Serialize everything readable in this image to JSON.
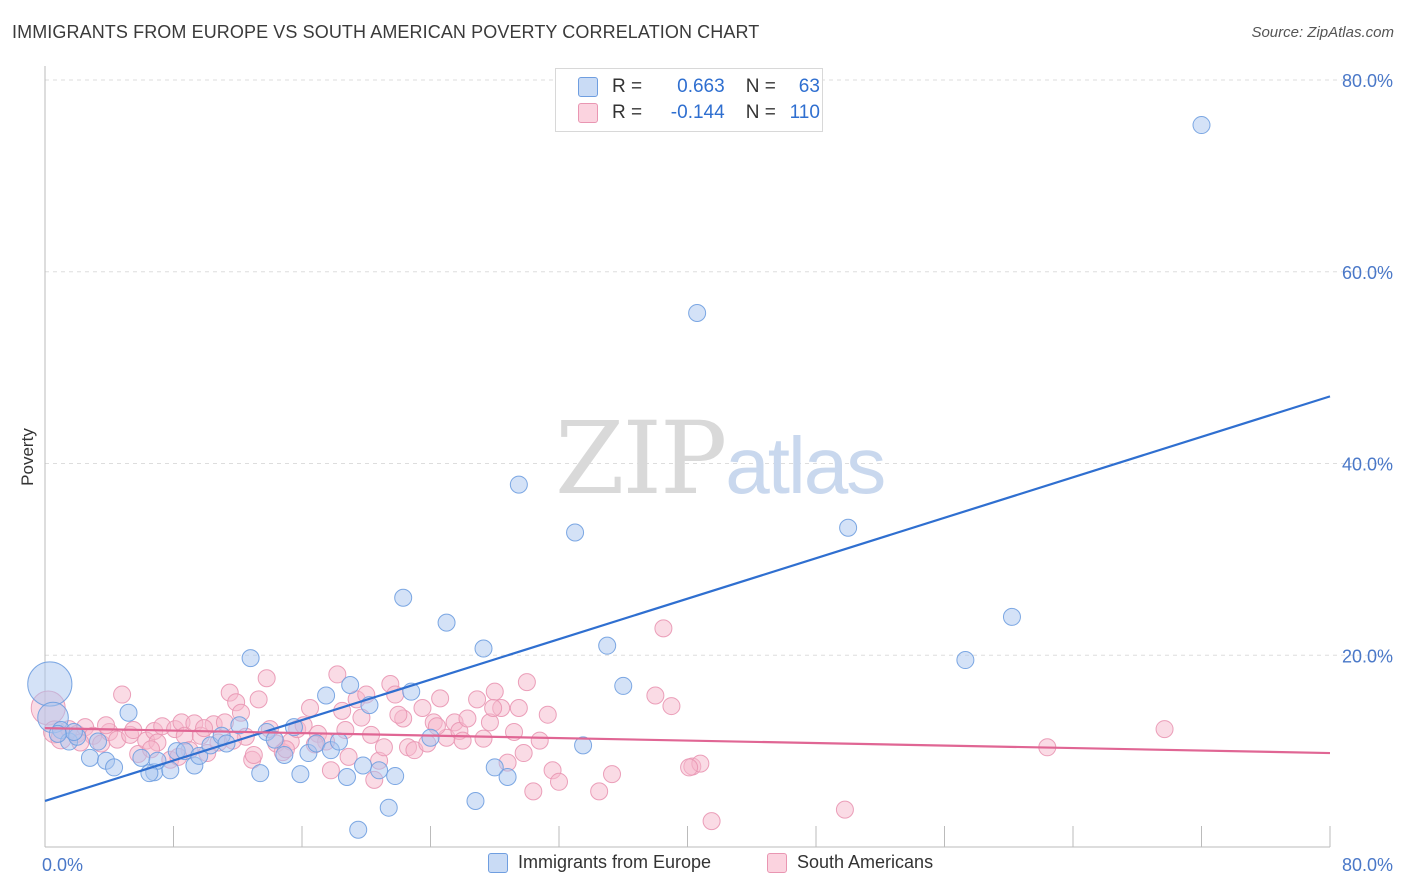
{
  "header": {
    "title": "IMMIGRANTS FROM EUROPE VS SOUTH AMERICAN POVERTY CORRELATION CHART",
    "source": "Source: ZipAtlas.com"
  },
  "legend": {
    "rows": [
      {
        "r_label": "R =",
        "r_value": "0.663",
        "n_label": "N =",
        "n_value": "63",
        "color": "#a9c6ef"
      },
      {
        "r_label": "R =",
        "r_value": "-0.144",
        "n_label": "N =",
        "n_value": "110",
        "color": "#f5b8cb"
      }
    ]
  },
  "bottom_legend": {
    "items": [
      {
        "label": "Immigrants from Europe",
        "color": "#a9c6ef"
      },
      {
        "label": "South Americans",
        "color": "#f5b8cb"
      }
    ]
  },
  "watermark": {
    "zip": "ZIP",
    "atlas": "atlas"
  },
  "colors": {
    "blue_fill": "#a9c6ef",
    "blue_stroke": "#6f9ee0",
    "blue_line": "#2f6fd0",
    "pink_fill": "#f5b8cb",
    "pink_stroke": "#e996b2",
    "pink_line": "#e06694",
    "grid": "#dddddd",
    "tick_label": "#4a78c8"
  },
  "chart_data": {
    "type": "scatter",
    "title": "IMMIGRANTS FROM EUROPE VS SOUTH AMERICAN POVERTY CORRELATION CHART",
    "xlabel": "",
    "ylabel": "Poverty",
    "xlim": [
      0,
      80
    ],
    "ylim": [
      0,
      80
    ],
    "x_tick_labels": [
      "0.0%",
      "80.0%"
    ],
    "y_tick_labels": [
      "20.0%",
      "40.0%",
      "60.0%",
      "80.0%"
    ],
    "y_ticks": [
      20,
      40,
      60,
      80
    ],
    "x_ticks": [
      0,
      8,
      16,
      24,
      32,
      40,
      48,
      56,
      64,
      72,
      80
    ],
    "grid": "horizontal dashed",
    "legend_position": "top-center",
    "series": [
      {
        "name": "Immigrants from Europe",
        "color": "#a9c6ef",
        "trend": {
          "x": [
            0,
            80
          ],
          "y": [
            4.8,
            47.0
          ]
        },
        "points": [
          [
            0.3,
            17.0,
            2.6
          ],
          [
            0.5,
            13.5,
            1.8
          ],
          [
            1.0,
            12.2,
            1.0
          ],
          [
            1.5,
            11.0,
            1.0
          ],
          [
            2.0,
            11.5,
            1.0
          ],
          [
            2.8,
            9.3,
            1.0
          ],
          [
            3.3,
            11.0,
            1.0
          ],
          [
            3.8,
            9.0,
            1.0
          ],
          [
            4.3,
            8.3,
            1.0
          ],
          [
            5.2,
            14.0,
            1.0
          ],
          [
            6.0,
            9.3,
            1.0
          ],
          [
            6.8,
            7.8,
            1.0
          ],
          [
            7.0,
            9.0,
            1.0
          ],
          [
            7.8,
            8.0,
            1.0
          ],
          [
            8.2,
            10.0,
            1.0
          ],
          [
            8.7,
            10.0,
            1.0
          ],
          [
            9.3,
            8.5,
            1.0
          ],
          [
            9.6,
            9.5,
            1.0
          ],
          [
            10.3,
            10.6,
            1.0
          ],
          [
            11.0,
            11.6,
            1.0
          ],
          [
            11.3,
            10.8,
            1.0
          ],
          [
            12.1,
            12.7,
            1.0
          ],
          [
            12.8,
            19.7,
            1.0
          ],
          [
            13.4,
            7.7,
            1.0
          ],
          [
            13.8,
            12.0,
            1.0
          ],
          [
            14.3,
            11.2,
            1.0
          ],
          [
            14.9,
            9.6,
            1.0
          ],
          [
            15.5,
            12.5,
            1.0
          ],
          [
            15.9,
            7.6,
            1.0
          ],
          [
            16.4,
            9.8,
            1.0
          ],
          [
            16.9,
            10.8,
            1.0
          ],
          [
            17.5,
            15.8,
            1.0
          ],
          [
            17.8,
            10.1,
            1.0
          ],
          [
            18.3,
            11.0,
            1.0
          ],
          [
            18.8,
            7.3,
            1.0
          ],
          [
            19.0,
            16.9,
            1.0
          ],
          [
            19.5,
            1.8,
            1.0
          ],
          [
            20.2,
            14.8,
            1.0
          ],
          [
            20.8,
            8.0,
            1.0
          ],
          [
            21.4,
            4.1,
            1.0
          ],
          [
            21.8,
            7.4,
            1.0
          ],
          [
            22.3,
            26.0,
            1.0
          ],
          [
            22.8,
            16.2,
            1.0
          ],
          [
            24.0,
            11.4,
            1.0
          ],
          [
            25.0,
            23.4,
            1.0
          ],
          [
            26.8,
            4.8,
            1.0
          ],
          [
            27.3,
            20.7,
            1.0
          ],
          [
            28.0,
            8.3,
            1.0
          ],
          [
            28.8,
            7.3,
            1.0
          ],
          [
            29.5,
            37.8,
            1.0
          ],
          [
            33.0,
            32.8,
            1.0
          ],
          [
            33.5,
            10.6,
            1.0
          ],
          [
            35.0,
            21.0,
            1.0
          ],
          [
            36.0,
            16.8,
            1.0
          ],
          [
            40.6,
            55.7,
            1.0
          ],
          [
            50.0,
            33.3,
            1.0
          ],
          [
            57.3,
            19.5,
            1.0
          ],
          [
            60.2,
            24.0,
            1.0
          ],
          [
            72.0,
            75.3,
            1.0
          ],
          [
            1.8,
            12.0,
            1.0
          ],
          [
            0.8,
            11.8,
            1.0
          ],
          [
            6.5,
            7.7,
            1.0
          ],
          [
            19.8,
            8.5,
            1.0
          ]
        ]
      },
      {
        "name": "South Americans",
        "color": "#f5b8cb",
        "trend": {
          "x": [
            0,
            80
          ],
          "y": [
            12.4,
            9.8
          ]
        },
        "points": [
          [
            0.2,
            14.5,
            2.0
          ],
          [
            0.6,
            12.0,
            1.3
          ],
          [
            1.0,
            11.3,
            1.2
          ],
          [
            1.5,
            12.3,
            1.0
          ],
          [
            2.0,
            11.8,
            1.0
          ],
          [
            2.5,
            12.5,
            1.0
          ],
          [
            3.0,
            11.6,
            1.0
          ],
          [
            3.5,
            10.8,
            1.0
          ],
          [
            4.0,
            12.0,
            1.0
          ],
          [
            4.5,
            11.2,
            1.0
          ],
          [
            4.8,
            15.9,
            1.0
          ],
          [
            5.3,
            11.7,
            1.0
          ],
          [
            5.8,
            9.7,
            1.0
          ],
          [
            6.3,
            11.1,
            1.0
          ],
          [
            6.8,
            12.1,
            1.0
          ],
          [
            7.0,
            10.9,
            1.0
          ],
          [
            7.3,
            12.6,
            1.0
          ],
          [
            7.8,
            9.1,
            1.0
          ],
          [
            8.1,
            12.3,
            1.0
          ],
          [
            8.5,
            13.0,
            1.0
          ],
          [
            8.7,
            11.6,
            1.0
          ],
          [
            9.0,
            10.1,
            1.0
          ],
          [
            9.3,
            12.9,
            1.0
          ],
          [
            9.7,
            11.6,
            1.0
          ],
          [
            10.1,
            9.8,
            1.0
          ],
          [
            10.5,
            12.8,
            1.0
          ],
          [
            10.8,
            10.9,
            1.0
          ],
          [
            11.2,
            13.0,
            1.0
          ],
          [
            11.5,
            16.1,
            1.0
          ],
          [
            11.9,
            15.1,
            1.0
          ],
          [
            12.2,
            14.0,
            1.0
          ],
          [
            12.5,
            11.5,
            1.0
          ],
          [
            12.9,
            9.1,
            1.0
          ],
          [
            13.3,
            15.4,
            1.0
          ],
          [
            13.8,
            17.6,
            1.0
          ],
          [
            14.0,
            12.3,
            1.0
          ],
          [
            14.4,
            10.8,
            1.0
          ],
          [
            14.8,
            9.9,
            1.0
          ],
          [
            15.3,
            11.0,
            1.0
          ],
          [
            15.7,
            12.3,
            1.0
          ],
          [
            16.1,
            12.7,
            1.0
          ],
          [
            16.5,
            14.5,
            1.0
          ],
          [
            17.0,
            11.8,
            1.0
          ],
          [
            17.5,
            11.0,
            1.0
          ],
          [
            17.8,
            8.0,
            1.0
          ],
          [
            18.2,
            18.0,
            1.0
          ],
          [
            18.5,
            14.2,
            1.0
          ],
          [
            18.9,
            9.4,
            1.0
          ],
          [
            19.4,
            15.4,
            1.0
          ],
          [
            19.7,
            13.5,
            1.0
          ],
          [
            20.0,
            15.9,
            1.0
          ],
          [
            20.5,
            7.0,
            1.0
          ],
          [
            20.8,
            9.0,
            1.0
          ],
          [
            21.1,
            10.4,
            1.0
          ],
          [
            21.5,
            17.0,
            1.0
          ],
          [
            21.8,
            15.9,
            1.0
          ],
          [
            22.3,
            13.4,
            1.0
          ],
          [
            22.6,
            10.4,
            1.0
          ],
          [
            23.0,
            10.1,
            1.0
          ],
          [
            23.5,
            14.5,
            1.0
          ],
          [
            23.8,
            10.8,
            1.0
          ],
          [
            24.2,
            13.0,
            1.0
          ],
          [
            24.6,
            15.5,
            1.0
          ],
          [
            25.0,
            11.4,
            1.0
          ],
          [
            25.5,
            13.0,
            1.0
          ],
          [
            25.8,
            12.1,
            1.0
          ],
          [
            26.3,
            13.4,
            1.0
          ],
          [
            26.9,
            15.4,
            1.0
          ],
          [
            27.3,
            11.3,
            1.0
          ],
          [
            27.7,
            13.0,
            1.0
          ],
          [
            28.0,
            16.2,
            1.0
          ],
          [
            28.4,
            14.5,
            1.0
          ],
          [
            28.8,
            8.8,
            1.0
          ],
          [
            29.2,
            12.0,
            1.0
          ],
          [
            29.5,
            14.5,
            1.0
          ],
          [
            30.0,
            17.2,
            1.0
          ],
          [
            30.4,
            5.8,
            1.0
          ],
          [
            30.8,
            11.1,
            1.0
          ],
          [
            31.3,
            13.8,
            1.0
          ],
          [
            31.6,
            8.0,
            1.0
          ],
          [
            32.0,
            6.8,
            1.0
          ],
          [
            34.5,
            5.8,
            1.0
          ],
          [
            35.3,
            7.6,
            1.0
          ],
          [
            38.0,
            15.8,
            1.0
          ],
          [
            38.5,
            22.8,
            1.0
          ],
          [
            39.0,
            14.7,
            1.0
          ],
          [
            40.3,
            8.4,
            1.0
          ],
          [
            40.8,
            8.7,
            1.0
          ],
          [
            41.5,
            2.7,
            1.0
          ],
          [
            49.8,
            3.9,
            1.0
          ],
          [
            62.4,
            10.4,
            1.0
          ],
          [
            69.7,
            12.3,
            1.0
          ],
          [
            2.2,
            10.9,
            1.0
          ],
          [
            3.8,
            12.7,
            1.0
          ],
          [
            5.5,
            12.2,
            1.0
          ],
          [
            6.6,
            10.2,
            1.0
          ],
          [
            8.3,
            9.4,
            1.0
          ],
          [
            9.9,
            12.4,
            1.0
          ],
          [
            11.7,
            11.1,
            1.0
          ],
          [
            13.0,
            9.6,
            1.0
          ],
          [
            15.0,
            10.2,
            1.0
          ],
          [
            16.8,
            10.7,
            1.0
          ],
          [
            18.7,
            12.2,
            1.0
          ],
          [
            20.3,
            11.7,
            1.0
          ],
          [
            22.0,
            13.8,
            1.0
          ],
          [
            24.4,
            12.6,
            1.0
          ],
          [
            26.0,
            11.1,
            1.0
          ],
          [
            27.9,
            14.5,
            1.0
          ],
          [
            29.8,
            9.8,
            1.0
          ],
          [
            40.1,
            8.3,
            1.0
          ]
        ]
      }
    ]
  }
}
